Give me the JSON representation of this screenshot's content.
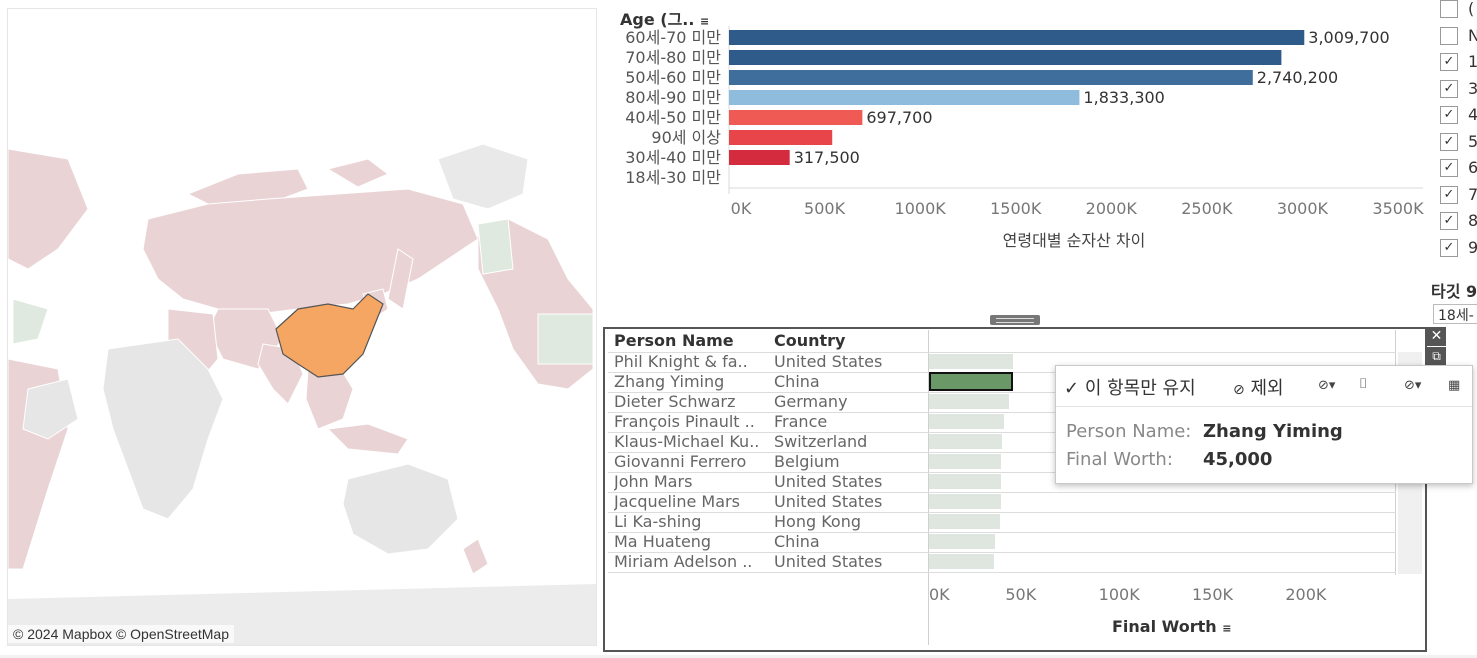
{
  "map": {
    "attribution": "© 2024 Mapbox © OpenStreetMap",
    "highlight_color": "#f4a662",
    "land_color": "#ead3d5"
  },
  "age_chart": {
    "header": "Age (그..",
    "sort_icon": "sort-icon",
    "categories": [
      "60세-70 미만",
      "70세-80 미만",
      "50세-60 미만",
      "80세-90 미만",
      "40세-50 미만",
      "90세 이상",
      "30세-40 미만",
      "18세-30 미만"
    ],
    "values": [
      3009700,
      2890000,
      2740200,
      1833300,
      697700,
      540000,
      317500,
      0
    ],
    "colors": [
      "#2e5b8a",
      "#2e5b8a",
      "#3f6d9c",
      "#8fbcdc",
      "#ef5a55",
      "#e8454a",
      "#d42b3e",
      "#d42b3e"
    ],
    "data_labels": [
      "3,009,700",
      "",
      "2,740,200",
      "1,833,300",
      "697,700",
      "",
      "317,500",
      ""
    ],
    "ticks": [
      "0K",
      "500K",
      "1000K",
      "1500K",
      "2000K",
      "2500K",
      "3000K",
      "3500K"
    ],
    "xlabel": "연령대별 순자산 차이"
  },
  "chart_data": {
    "type": "bar",
    "categories": [
      "60세-70 미만",
      "70세-80 미만",
      "50세-60 미만",
      "80세-90 미만",
      "40세-50 미만",
      "90세 이상",
      "30세-40 미만",
      "18세-30 미만"
    ],
    "values": [
      3009700,
      2890000,
      2740200,
      1833300,
      697700,
      540000,
      317500,
      0
    ],
    "xlabel": "연령대별 순자산 차이",
    "xlim": [
      0,
      3500000
    ]
  },
  "filter": {
    "items": [
      {
        "text": "(",
        "checked": false
      },
      {
        "text": "N",
        "checked": false
      },
      {
        "text": "1",
        "checked": true
      },
      {
        "text": "3",
        "checked": true
      },
      {
        "text": "4",
        "checked": true
      },
      {
        "text": "5",
        "checked": true
      },
      {
        "text": "6",
        "checked": true
      },
      {
        "text": "7",
        "checked": true
      },
      {
        "text": "8",
        "checked": true
      },
      {
        "text": "9",
        "checked": true
      }
    ],
    "target_label": "타깃 9",
    "select_value": "18세-"
  },
  "table": {
    "col_person": "Person Name",
    "col_country": "Country",
    "rows": [
      {
        "name": "Phil Knight & fa..",
        "country": "United States",
        "worth": 45000
      },
      {
        "name": "Zhang Yiming",
        "country": "China",
        "worth": 45000
      },
      {
        "name": "Dieter Schwarz",
        "country": "Germany",
        "worth": 43000
      },
      {
        "name": "François Pinault ..",
        "country": "France",
        "worth": 40000
      },
      {
        "name": "Klaus-Michael Ku..",
        "country": "Switzerland",
        "worth": 39000
      },
      {
        "name": "Giovanni Ferrero",
        "country": "Belgium",
        "worth": 38500
      },
      {
        "name": "John Mars",
        "country": "United States",
        "worth": 38500
      },
      {
        "name": "Jacqueline Mars",
        "country": "United States",
        "worth": 38500
      },
      {
        "name": "Li Ka-shing",
        "country": "Hong Kong",
        "worth": 38000
      },
      {
        "name": "Ma Huateng",
        "country": "China",
        "worth": 35300
      },
      {
        "name": "Miriam Adelson ..",
        "country": "United States",
        "worth": 35000
      }
    ],
    "selected_index": 1,
    "ticks": [
      "0K",
      "50K",
      "100K",
      "150K",
      "200K"
    ],
    "xlabel": "Final Worth",
    "xlim": [
      0,
      225000
    ]
  },
  "tooltip": {
    "keep_only": "이 항목만 유지",
    "exclude": "제외",
    "person_key": "Person Name:",
    "person_val": "Zhang Yiming",
    "worth_key": "Final Worth:",
    "worth_val": "45,000"
  }
}
